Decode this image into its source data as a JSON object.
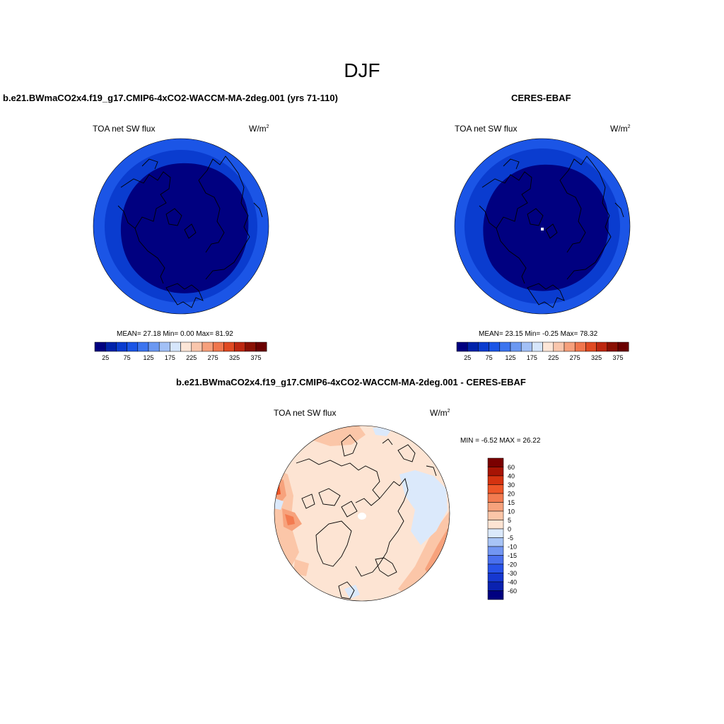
{
  "figure": {
    "title": "DJF",
    "panels": [
      {
        "title": "b.e21.BWmaCO2x4.f19_g17.CMIP6-4xCO2-WACCM-MA-2deg.001 (yrs 71-110)",
        "variable": "TOA net SW flux",
        "units": "W/m",
        "units_sup": "2",
        "stats": "MEAN=  27.18  Min=   0.00  Max=  81.92"
      },
      {
        "title": "CERES-EBAF",
        "variable": "TOA net SW flux",
        "units": "W/m",
        "units_sup": "2",
        "stats": "MEAN=  23.15  Min=  -0.25  Max=  78.32"
      },
      {
        "title": "b.e21.BWmaCO2x4.f19_g17.CMIP6-4xCO2-WACCM-MA-2deg.001 - CERES-EBAF",
        "variable": "TOA net SW flux",
        "units": "W/m",
        "units_sup": "2",
        "stats": "MIN =  -6.52 MAX =  26.22"
      }
    ]
  },
  "chart_data": [
    {
      "type": "heatmap",
      "projection": "polar-stereographic-north",
      "title": "b.e21.BWmaCO2x4.f19_g17.CMIP6-4xCO2-WACCM-MA-2deg.001 (yrs 71-110)",
      "variable": "TOA net SW flux",
      "units": "W/m2",
      "mean": 27.18,
      "min": 0.0,
      "max": 81.92,
      "colorbar": {
        "orientation": "horizontal",
        "levels": [
          25,
          50,
          75,
          100,
          125,
          150,
          175,
          200,
          225,
          250,
          275,
          300,
          325,
          350,
          375
        ],
        "tick_labels": [
          "25",
          "75",
          "125",
          "175",
          "225",
          "275",
          "325",
          "375"
        ],
        "colors": [
          "#000080",
          "#0022aa",
          "#0a3ccf",
          "#1b55e6",
          "#3c74ef",
          "#6b98f2",
          "#a2c0f6",
          "#d6e6fb",
          "#fde6d7",
          "#f9c6ac",
          "#f6a07c",
          "#f0764d",
          "#e04a22",
          "#bd2710",
          "#8a1003",
          "#6a0000"
        ]
      },
      "rings": [
        {
          "value_bin": "0-25",
          "color": "#000080"
        },
        {
          "value_bin": "25-50",
          "color": "#0a3ccf"
        },
        {
          "value_bin": "50-75",
          "color": "#1b55e6"
        }
      ]
    },
    {
      "type": "heatmap",
      "projection": "polar-stereographic-north",
      "title": "CERES-EBAF",
      "variable": "TOA net SW flux",
      "units": "W/m2",
      "mean": 23.15,
      "min": -0.25,
      "max": 78.32,
      "colorbar": {
        "orientation": "horizontal",
        "levels": [
          25,
          50,
          75,
          100,
          125,
          150,
          175,
          200,
          225,
          250,
          275,
          300,
          325,
          350,
          375
        ],
        "tick_labels": [
          "25",
          "75",
          "125",
          "175",
          "225",
          "275",
          "325",
          "375"
        ],
        "colors": [
          "#000080",
          "#0022aa",
          "#0a3ccf",
          "#1b55e6",
          "#3c74ef",
          "#6b98f2",
          "#a2c0f6",
          "#d6e6fb",
          "#fde6d7",
          "#f9c6ac",
          "#f6a07c",
          "#f0764d",
          "#e04a22",
          "#bd2710",
          "#8a1003",
          "#6a0000"
        ]
      },
      "rings": [
        {
          "value_bin": "0-25",
          "color": "#000080"
        },
        {
          "value_bin": "25-50",
          "color": "#0a3ccf"
        },
        {
          "value_bin": "50-75",
          "color": "#1b55e6"
        }
      ]
    },
    {
      "type": "heatmap",
      "projection": "polar-stereographic-north",
      "title": "b.e21.BWmaCO2x4.f19_g17.CMIP6-4xCO2-WACCM-MA-2deg.001 - CERES-EBAF",
      "variable": "TOA net SW flux",
      "units": "W/m2",
      "min": -6.52,
      "max": 26.22,
      "colorbar": {
        "orientation": "vertical",
        "levels": [
          -60,
          -40,
          -30,
          -20,
          -15,
          -10,
          -5,
          0,
          5,
          10,
          15,
          20,
          30,
          40,
          60
        ],
        "tick_labels": [
          "60",
          "40",
          "30",
          "20",
          "15",
          "10",
          "5",
          "0",
          "-5",
          "-10",
          "-15",
          "-20",
          "-30",
          "-40",
          "-60"
        ],
        "colors": [
          "#000080",
          "#0a22b0",
          "#1638d0",
          "#2852e8",
          "#4a70ee",
          "#7296f2",
          "#a8c4f6",
          "#dbe9fb",
          "#fde4d3",
          "#fbc6a8",
          "#f7a27c",
          "#f37b50",
          "#ee5628",
          "#d53310",
          "#a71404",
          "#7a0000"
        ]
      },
      "dominant_bin": "0 to 5 (#fde4d3)"
    }
  ]
}
